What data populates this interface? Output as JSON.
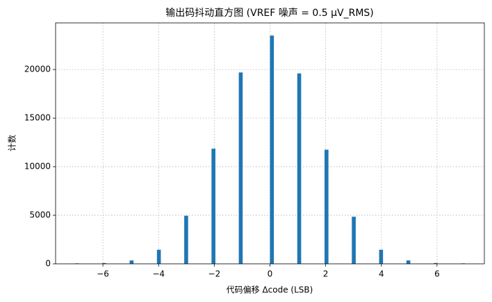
{
  "chart_data": {
    "type": "histogram",
    "title": "输出码抖动直方图 (VREF 噪声 = 0.5 μV_RMS)",
    "x_label": "代码偏移 Δcode (LSB)",
    "y_label": "计数",
    "bins": [
      -7,
      -6.86,
      -6.72,
      -6.58,
      -6.44,
      -6.3,
      -6.16,
      -6.02,
      -5.88,
      -5.74,
      -5.6,
      -5.46,
      -5.32,
      -5.18,
      -5.04,
      -4.9,
      -4.76,
      -4.62,
      -4.48,
      -4.34,
      -4.2,
      -4.06,
      -3.92,
      -3.78,
      -3.64,
      -3.5,
      -3.36,
      -3.22,
      -3.08,
      -2.94,
      -2.8,
      -2.66,
      -2.52,
      -2.38,
      -2.24,
      -2.1,
      -1.96,
      -1.82,
      -1.68,
      -1.54,
      -1.4,
      -1.26,
      -1.12,
      -0.98,
      -0.84,
      -0.7,
      -0.56,
      -0.42,
      -0.28,
      -0.14,
      0,
      0.14,
      0.28,
      0.42,
      0.56,
      0.7,
      0.84,
      0.98,
      1.12,
      1.26,
      1.4,
      1.54,
      1.68,
      1.82,
      1.96,
      2.1,
      2.24,
      2.38,
      2.52,
      2.66,
      2.8,
      2.94,
      3.08,
      3.22,
      3.36,
      3.5,
      3.64,
      3.78,
      3.92,
      4.06,
      4.2,
      4.34,
      4.48,
      4.62,
      4.76,
      4.9,
      5.04,
      5.18,
      5.32,
      5.46,
      5.6,
      5.74,
      5.88,
      6.02,
      6.16,
      6.3,
      6.44,
      6.58,
      6.72,
      6.86,
      7
    ],
    "values": [
      50,
      0,
      0,
      0,
      0,
      0,
      0,
      80,
      0,
      0,
      0,
      0,
      0,
      0,
      350,
      0,
      0,
      0,
      0,
      0,
      0,
      1450,
      0,
      0,
      0,
      0,
      0,
      0,
      4950,
      0,
      0,
      0,
      0,
      0,
      0,
      11850,
      0,
      0,
      0,
      0,
      0,
      0,
      19700,
      0,
      0,
      0,
      0,
      0,
      0,
      0,
      23500,
      0,
      0,
      0,
      0,
      0,
      0,
      19600,
      0,
      0,
      0,
      0,
      0,
      0,
      11750,
      0,
      0,
      0,
      0,
      0,
      0,
      4850,
      0,
      0,
      0,
      0,
      0,
      0,
      1450,
      0,
      0,
      0,
      0,
      0,
      0,
      350,
      0,
      0,
      0,
      0,
      0,
      0,
      80,
      0,
      0,
      0,
      0,
      0,
      0,
      50
    ],
    "color": "#1f77b4",
    "xlim": [
      -7.7,
      7.7
    ],
    "xticks": [
      {
        "value": -6,
        "label": "−6"
      },
      {
        "value": -4,
        "label": "−4"
      },
      {
        "value": -2,
        "label": "−2"
      },
      0,
      2,
      4,
      6
    ],
    "ylim": [
      0,
      24800
    ],
    "yticks": [
      0,
      5000,
      10000,
      15000,
      20000
    ],
    "grid": true
  }
}
